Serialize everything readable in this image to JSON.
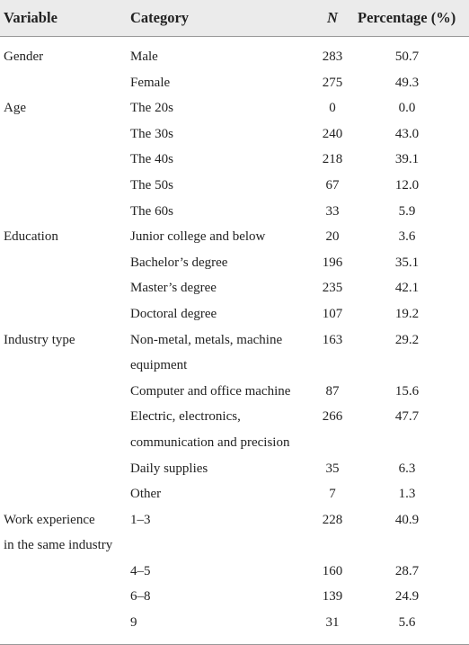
{
  "table": {
    "header": [
      "Variable",
      "Category",
      "N",
      "Percentage (%)"
    ],
    "groups": [
      {
        "variable": "Gender",
        "rows": [
          {
            "category": "Male",
            "n": 283,
            "percentage": "50.7"
          },
          {
            "category": "Female",
            "n": 275,
            "percentage": "49.3"
          }
        ]
      },
      {
        "variable": "Age",
        "rows": [
          {
            "category": "The 20s",
            "n": 0,
            "percentage": "0.0"
          },
          {
            "category": "The 30s",
            "n": 240,
            "percentage": "43.0"
          },
          {
            "category": "The 40s",
            "n": 218,
            "percentage": "39.1"
          },
          {
            "category": "The 50s",
            "n": 67,
            "percentage": "12.0"
          },
          {
            "category": "The 60s",
            "n": 33,
            "percentage": "5.9"
          }
        ]
      },
      {
        "variable": "Education",
        "rows": [
          {
            "category": "Junior college and below",
            "n": 20,
            "percentage": "3.6"
          },
          {
            "category": "Bachelor’s degree",
            "n": 196,
            "percentage": "35.1"
          },
          {
            "category": "Master’s degree",
            "n": 235,
            "percentage": "42.1"
          },
          {
            "category": "Doctoral degree",
            "n": 107,
            "percentage": "19.2"
          }
        ]
      },
      {
        "variable": "Industry type",
        "rows": [
          {
            "category": [
              "Non-metal, metals, machine",
              "equipment"
            ],
            "n": 163,
            "percentage": "29.2"
          },
          {
            "category": "Computer and office machine",
            "n": 87,
            "percentage": "15.6"
          },
          {
            "category": [
              "Electric, electronics,",
              "communication and precision"
            ],
            "n": 266,
            "percentage": "47.7"
          },
          {
            "category": "Daily supplies",
            "n": 35,
            "percentage": "6.3"
          },
          {
            "category": "Other",
            "n": 7,
            "percentage": "1.3"
          }
        ]
      },
      {
        "variable": [
          "Work experience",
          "in the same industry"
        ],
        "rows": [
          {
            "category": "1–3",
            "n": 228,
            "percentage": "40.9"
          },
          {
            "category": "4–5",
            "n": 160,
            "percentage": "28.7"
          },
          {
            "category": "6–8",
            "n": 139,
            "percentage": "24.9"
          },
          {
            "category": "9",
            "n": 31,
            "percentage": "5.6"
          }
        ]
      }
    ]
  }
}
